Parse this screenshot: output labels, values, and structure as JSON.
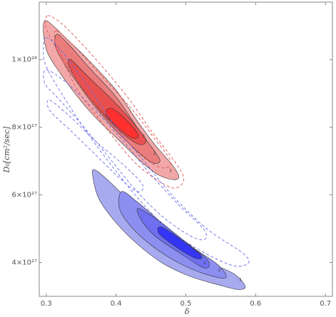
{
  "chart_data": {
    "type": "contour",
    "xlabel": "δ",
    "ylabel": "D₀[cm²/sec]",
    "xlim": [
      0.29,
      0.71
    ],
    "ylim": [
      3e+27,
      1.17e+28
    ],
    "x_ticks": [
      {
        "value": 0.3,
        "label": "0.3"
      },
      {
        "value": 0.4,
        "label": "0.4"
      },
      {
        "value": 0.5,
        "label": "0.5"
      },
      {
        "value": 0.6,
        "label": "0.6"
      },
      {
        "value": 0.7,
        "label": "0.7"
      }
    ],
    "y_ticks": [
      {
        "value": 4e+27,
        "label": "4×10²⁷"
      },
      {
        "value": 6e+27,
        "label": "6×10²⁷"
      },
      {
        "value": 8e+27,
        "label": "8×10²⁷"
      },
      {
        "value": 1e+28,
        "label": "1×10²⁸"
      }
    ],
    "colors": {
      "red_fill": [
        "#f2a8a8",
        "#ea7c7c",
        "#e85050",
        "#ff3030"
      ],
      "blue_fill": [
        "#a8aaf0",
        "#8c8ef0",
        "#6e70f0",
        "#3535f5"
      ],
      "red_dashed": "#e05050",
      "blue_dashed": "#6a6ae8",
      "outline": "#333333"
    },
    "filled_regions": [
      {
        "group": "red",
        "level": 3,
        "label": "3",
        "label_at": [
          0.478,
          6.68e+27
        ],
        "points": [
          [
            0.298,
            1.115e+28
          ],
          [
            0.31,
            1.1e+28
          ],
          [
            0.33,
            1.06e+28
          ],
          [
            0.36,
            1e+28
          ],
          [
            0.4,
            9.1e+27
          ],
          [
            0.43,
            8.2e+27
          ],
          [
            0.455,
            7.5e+27
          ],
          [
            0.48,
            6.9e+27
          ],
          [
            0.49,
            6.55e+27
          ],
          [
            0.482,
            6.45e+27
          ],
          [
            0.46,
            6.6e+27
          ],
          [
            0.435,
            7e+27
          ],
          [
            0.405,
            7.6e+27
          ],
          [
            0.37,
            8.3e+27
          ],
          [
            0.345,
            8.9e+27
          ],
          [
            0.32,
            9.6e+27
          ],
          [
            0.302,
            1.02e+28
          ],
          [
            0.296,
            1.08e+28
          ]
        ]
      },
      {
        "group": "red",
        "level": 2,
        "label": "2",
        "label_at": [
          0.455,
          7.2e+27
        ],
        "points": [
          [
            0.315,
            1.075e+28
          ],
          [
            0.33,
            1.05e+28
          ],
          [
            0.36,
            9.8e+27
          ],
          [
            0.4,
            8.9e+27
          ],
          [
            0.43,
            8e+27
          ],
          [
            0.455,
            7.3e+27
          ],
          [
            0.463,
            7e+27
          ],
          [
            0.452,
            6.95e+27
          ],
          [
            0.43,
            7.3e+27
          ],
          [
            0.4,
            7.9e+27
          ],
          [
            0.37,
            8.6e+27
          ],
          [
            0.345,
            9.3e+27
          ],
          [
            0.325,
            9.9e+27
          ],
          [
            0.313,
            1.04e+28
          ]
        ]
      },
      {
        "group": "red",
        "level": 1,
        "label": "1",
        "label_at": [
          0.44,
          7.7e+27
        ],
        "points": [
          [
            0.335,
            1e+28
          ],
          [
            0.36,
            9.5e+27
          ],
          [
            0.4,
            8.7e+27
          ],
          [
            0.43,
            8e+27
          ],
          [
            0.443,
            7.6e+27
          ],
          [
            0.432,
            7.5e+27
          ],
          [
            0.405,
            7.9e+27
          ],
          [
            0.375,
            8.55e+27
          ],
          [
            0.35,
            9.2e+27
          ],
          [
            0.333,
            9.8e+27
          ]
        ]
      },
      {
        "group": "red",
        "level": 0,
        "label": "",
        "label_at": null,
        "points": [
          [
            0.395,
            8.55e+27
          ],
          [
            0.42,
            8.1e+27
          ],
          [
            0.432,
            7.75e+27
          ],
          [
            0.422,
            7.7e+27
          ],
          [
            0.4,
            8.05e+27
          ],
          [
            0.385,
            8.4e+27
          ]
        ]
      },
      {
        "group": "blue",
        "level": 3,
        "label": "3",
        "label_at": [
          0.578,
          3.45e+27
        ],
        "points": [
          [
            0.368,
            6.75e+27
          ],
          [
            0.385,
            6.5e+27
          ],
          [
            0.42,
            5.8e+27
          ],
          [
            0.46,
            5e+27
          ],
          [
            0.5,
            4.4e+27
          ],
          [
            0.54,
            3.95e+27
          ],
          [
            0.57,
            3.65e+27
          ],
          [
            0.585,
            3.3e+27
          ],
          [
            0.575,
            3.2e+27
          ],
          [
            0.545,
            3.35e+27
          ],
          [
            0.505,
            3.6e+27
          ],
          [
            0.465,
            4e+27
          ],
          [
            0.425,
            4.65e+27
          ],
          [
            0.395,
            5.3e+27
          ],
          [
            0.375,
            5.9e+27
          ],
          [
            0.367,
            6.5e+27
          ]
        ]
      },
      {
        "group": "blue",
        "level": 2,
        "label": "2",
        "label_at": [
          0.548,
          3.75e+27
        ],
        "points": [
          [
            0.408,
            6.1e+27
          ],
          [
            0.43,
            5.8e+27
          ],
          [
            0.47,
            5.1e+27
          ],
          [
            0.51,
            4.45e+27
          ],
          [
            0.545,
            3.95e+27
          ],
          [
            0.558,
            3.6e+27
          ],
          [
            0.548,
            3.55e+27
          ],
          [
            0.515,
            3.75e+27
          ],
          [
            0.48,
            4.1e+27
          ],
          [
            0.445,
            4.6e+27
          ],
          [
            0.42,
            5.1e+27
          ],
          [
            0.405,
            5.6e+27
          ]
        ]
      },
      {
        "group": "blue",
        "level": 1,
        "label": "1",
        "label_at": [
          0.527,
          3.95e+27
        ],
        "points": [
          [
            0.432,
            5.6e+27
          ],
          [
            0.46,
            5.25e+27
          ],
          [
            0.5,
            4.6e+27
          ],
          [
            0.53,
            4.1e+27
          ],
          [
            0.532,
            3.85e+27
          ],
          [
            0.52,
            3.9e+27
          ],
          [
            0.49,
            4.3e+27
          ],
          [
            0.455,
            4.8e+27
          ],
          [
            0.435,
            5.3e+27
          ]
        ]
      },
      {
        "group": "blue",
        "level": 0,
        "label": "",
        "label_at": null,
        "points": [
          [
            0.465,
            5.05e+27
          ],
          [
            0.495,
            4.65e+27
          ],
          [
            0.522,
            4.2e+27
          ],
          [
            0.515,
            4.12e+27
          ],
          [
            0.49,
            4.4e+27
          ],
          [
            0.462,
            4.85e+27
          ]
        ]
      }
    ],
    "dashed_contours": [
      {
        "group": "red",
        "points": [
          [
            0.302,
            1.13e+28
          ],
          [
            0.32,
            1.11e+28
          ],
          [
            0.345,
            1.06e+28
          ],
          [
            0.38,
            9.8e+27
          ],
          [
            0.42,
            8.8e+27
          ],
          [
            0.45,
            7.9e+27
          ],
          [
            0.48,
            7.1e+27
          ],
          [
            0.497,
            6.5e+27
          ],
          [
            0.485,
            6.2e+27
          ],
          [
            0.462,
            6.4e+27
          ],
          [
            0.43,
            6.9e+27
          ],
          [
            0.4,
            7.6e+27
          ],
          [
            0.37,
            8.4e+27
          ],
          [
            0.345,
            9.1e+27
          ],
          [
            0.325,
            9.9e+27
          ],
          [
            0.31,
            1.05e+28
          ],
          [
            0.299,
            1.1e+28
          ]
        ]
      },
      {
        "group": "red",
        "points": [
          [
            0.315,
            1.085e+28
          ],
          [
            0.34,
            1.04e+28
          ],
          [
            0.38,
            9.5e+27
          ],
          [
            0.42,
            8.6e+27
          ],
          [
            0.45,
            7.8e+27
          ],
          [
            0.478,
            7e+27
          ],
          [
            0.466,
            6.8e+27
          ],
          [
            0.44,
            7.1e+27
          ],
          [
            0.41,
            7.7e+27
          ],
          [
            0.38,
            8.4e+27
          ],
          [
            0.35,
            9.2e+27
          ],
          [
            0.327,
            9.95e+27
          ],
          [
            0.313,
            1.05e+28
          ]
        ]
      },
      {
        "group": "blue",
        "points": [
          [
            0.3,
            1.065e+28
          ],
          [
            0.32,
            1.03e+28
          ],
          [
            0.36,
            9.2e+27
          ],
          [
            0.4,
            8e+27
          ],
          [
            0.44,
            7e+27
          ],
          [
            0.48,
            6e+27
          ],
          [
            0.53,
            5e+27
          ],
          [
            0.58,
            4.3e+27
          ],
          [
            0.59,
            4e+27
          ],
          [
            0.57,
            3.9e+27
          ],
          [
            0.53,
            4.25e+27
          ],
          [
            0.48,
            4.9e+27
          ],
          [
            0.44,
            5.7e+27
          ],
          [
            0.4,
            6.7e+27
          ],
          [
            0.36,
            7.8e+27
          ],
          [
            0.325,
            8.9e+27
          ],
          [
            0.3,
            9.8e+27
          ],
          [
            0.296,
            1.03e+28
          ]
        ]
      },
      {
        "group": "blue",
        "points": [
          [
            0.3,
            9.7e+27
          ],
          [
            0.33,
            9.3e+27
          ],
          [
            0.37,
            8.5e+27
          ],
          [
            0.41,
            7.6e+27
          ],
          [
            0.45,
            6.6e+27
          ],
          [
            0.49,
            5.7e+27
          ],
          [
            0.525,
            5e+27
          ],
          [
            0.528,
            4.7e+27
          ],
          [
            0.51,
            4.75e+27
          ],
          [
            0.47,
            5.3e+27
          ],
          [
            0.43,
            6.1e+27
          ],
          [
            0.39,
            7.1e+27
          ],
          [
            0.35,
            8.1e+27
          ],
          [
            0.315,
            8.9e+27
          ],
          [
            0.298,
            9.3e+27
          ]
        ]
      },
      {
        "group": "blue",
        "points": [
          [
            0.305,
            8.8e+27
          ],
          [
            0.335,
            8.3e+27
          ],
          [
            0.37,
            7.6e+27
          ],
          [
            0.41,
            6.9e+27
          ],
          [
            0.438,
            6.3e+27
          ],
          [
            0.43,
            6.1e+27
          ],
          [
            0.405,
            6.5e+27
          ],
          [
            0.37,
            7.2e+27
          ],
          [
            0.335,
            7.9e+27
          ],
          [
            0.305,
            8.5e+27
          ]
        ]
      }
    ]
  }
}
